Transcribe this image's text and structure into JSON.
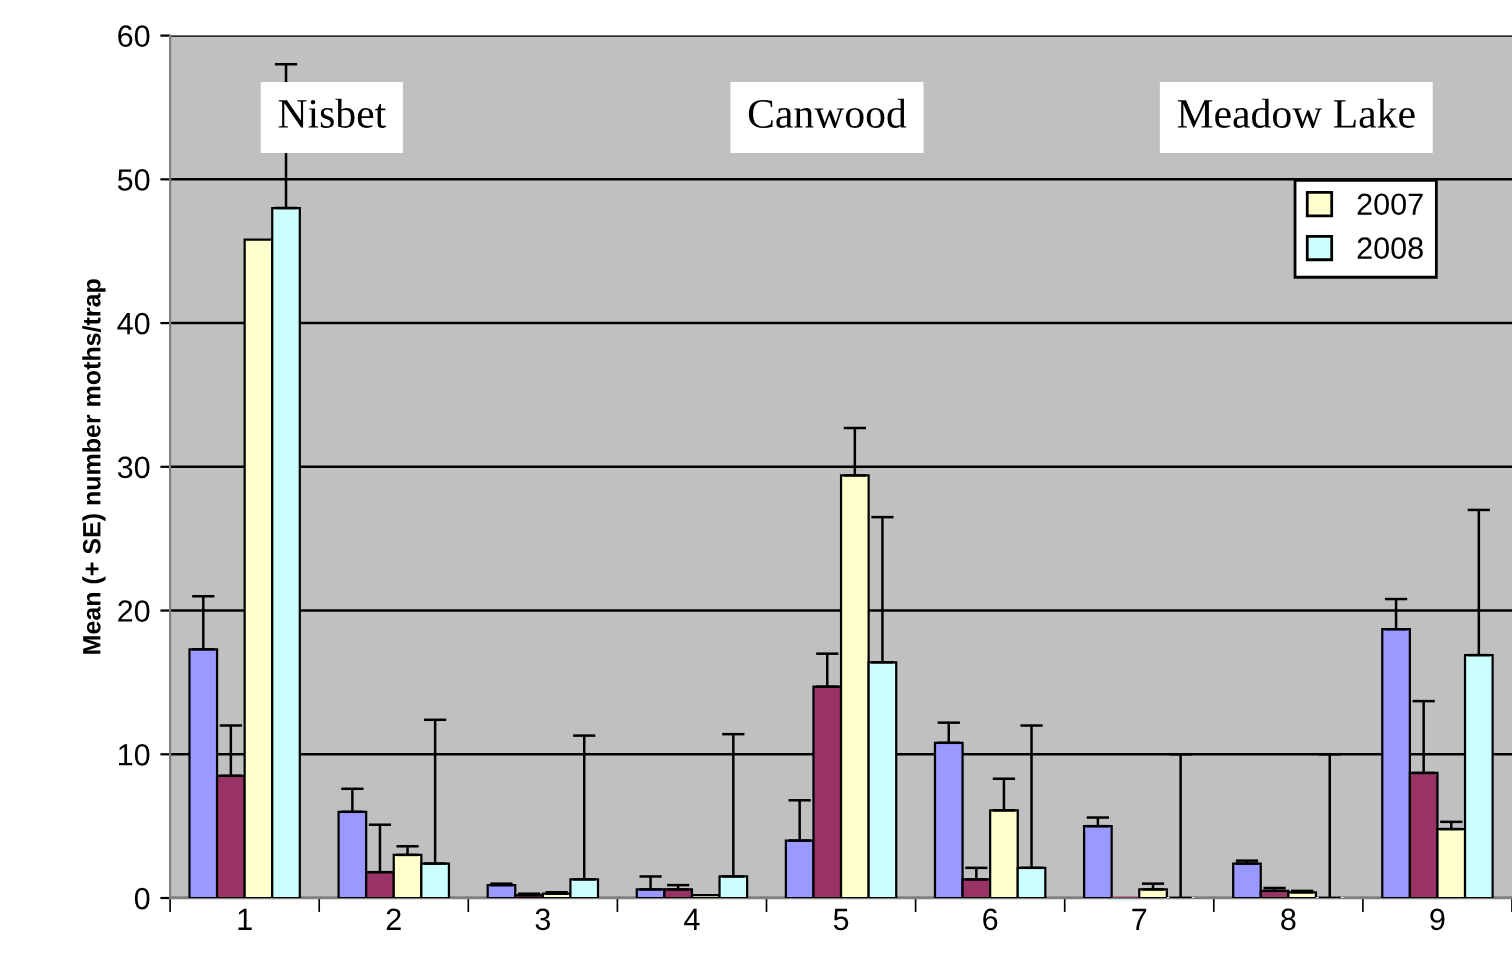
{
  "chart_data": {
    "type": "bar",
    "ylabel": "Mean (+ SE) number moths/trap",
    "categories": [
      "1",
      "2",
      "3",
      "4",
      "5",
      "6",
      "7",
      "8",
      "9"
    ],
    "series": [
      {
        "color": "#9999ff",
        "values": [
          17.3,
          6,
          0.9,
          0.6,
          4,
          10.8,
          5,
          2.4,
          18.7
        ],
        "errors": [
          [
            17.3,
            21
          ],
          [
            6,
            7.6
          ],
          [
            0.9,
            1.0
          ],
          [
            0.6,
            1.5
          ],
          [
            4,
            6.8
          ],
          [
            10.8,
            12.2
          ],
          [
            5,
            5.6
          ],
          [
            2.4,
            2.6
          ],
          [
            18.7,
            20.8
          ]
        ]
      },
      {
        "color": "#993366",
        "values": [
          8.5,
          1.8,
          0.2,
          0.6,
          14.7,
          1.3,
          0,
          0.5,
          8.7
        ],
        "errors": [
          [
            8.5,
            12
          ],
          [
            1.8,
            5.1
          ],
          [
            0.2,
            0.3
          ],
          [
            0.6,
            0.9
          ],
          [
            14.7,
            17
          ],
          [
            1.3,
            2.1
          ],
          null,
          [
            0.5,
            0.7
          ],
          [
            8.7,
            13.7
          ]
        ]
      },
      {
        "name": "2007",
        "color": "#ffffcc",
        "values": [
          45.8,
          3,
          0.3,
          0.2,
          29.4,
          6.1,
          0.6,
          0.4,
          4.8
        ],
        "errors": [
          null,
          [
            3,
            3.6
          ],
          [
            0.3,
            0.4
          ],
          null,
          [
            29.4,
            32.7
          ],
          [
            6.1,
            8.3
          ],
          [
            0.6,
            1.0
          ],
          [
            0.4,
            0.5
          ],
          [
            4.8,
            5.3
          ]
        ]
      },
      {
        "name": "2008",
        "color": "#ccffff",
        "values": [
          48,
          2.4,
          1.3,
          1.5,
          16.4,
          2.1,
          0,
          0,
          16.9
        ],
        "errors": [
          [
            48,
            58
          ],
          [
            2.4,
            12.4
          ],
          [
            1.3,
            11.3
          ],
          [
            1.5,
            11.4
          ],
          [
            16.4,
            26.5
          ],
          [
            2.1,
            12
          ],
          [
            0,
            10
          ],
          [
            0,
            10
          ],
          [
            16.9,
            27
          ]
        ]
      }
    ],
    "ylim": [
      0,
      60
    ],
    "yticks": [
      0,
      10,
      20,
      30,
      40,
      50,
      60
    ],
    "grid": "y",
    "legend": "top right",
    "annotations": [
      "Nisbet",
      "Canwood",
      "Meadow Lake"
    ]
  }
}
